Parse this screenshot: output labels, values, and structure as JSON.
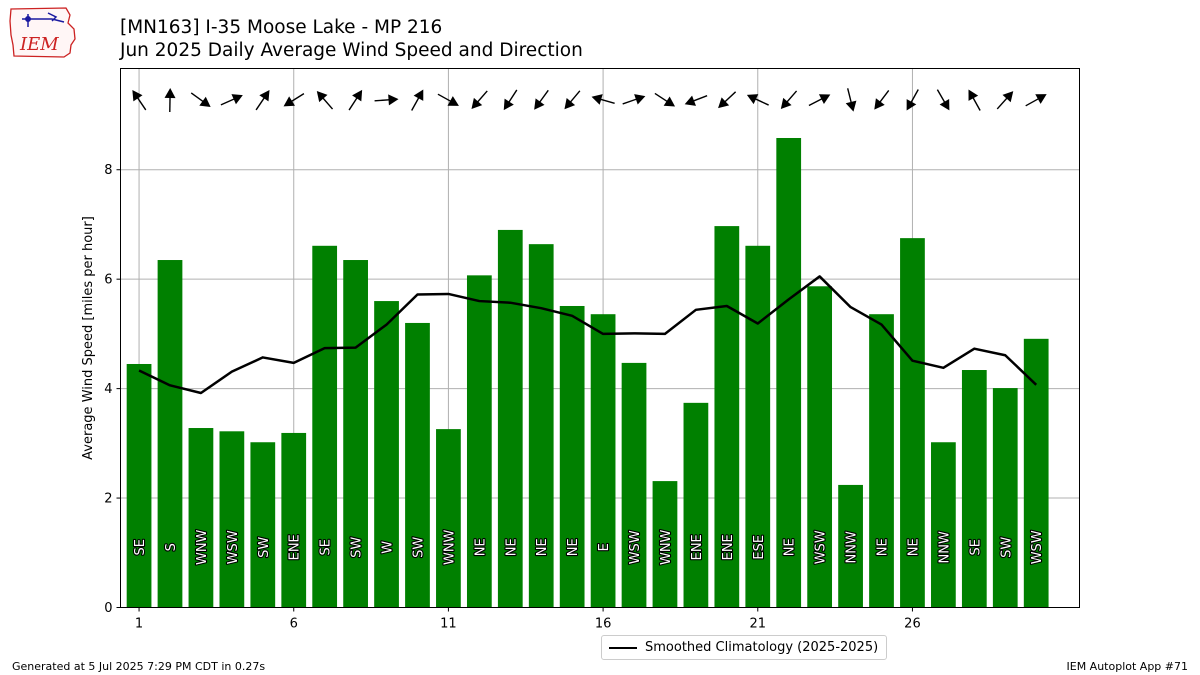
{
  "header": {
    "title_line1": "[MN163] I-35 Moose Lake - MP 216",
    "title_line2": "Jun 2025 Daily Average Wind Speed and Direction"
  },
  "logo": {
    "text": "IEM",
    "icon": "iem-iowa-state-logo"
  },
  "footer": {
    "generated": "Generated at 5 Jul 2025 7:29 PM CDT in 0.27s",
    "app": "IEM Autoplot App #71"
  },
  "chart_data": {
    "type": "bar",
    "title": "[MN163] I-35 Moose Lake - MP 216",
    "subtitle": "Jun 2025 Daily Average Wind Speed and Direction",
    "xlabel": "",
    "ylabel": "Average Wind Speed [miles per hour]",
    "ylim": [
      0,
      9.85
    ],
    "xlim": [
      0.4,
      31.4
    ],
    "xticks": [
      1,
      6,
      11,
      16,
      21,
      26
    ],
    "yticks": [
      0,
      2,
      4,
      6,
      8
    ],
    "grid": true,
    "bar_color": "#008000",
    "legend_position": "below-center",
    "days": [
      1,
      2,
      3,
      4,
      5,
      6,
      7,
      8,
      9,
      10,
      11,
      12,
      13,
      14,
      15,
      16,
      17,
      18,
      19,
      20,
      21,
      22,
      23,
      24,
      25,
      26,
      27,
      28,
      29,
      30
    ],
    "values": [
      4.45,
      6.35,
      3.28,
      3.22,
      3.02,
      3.19,
      6.61,
      6.35,
      5.6,
      5.2,
      3.26,
      6.07,
      6.9,
      6.64,
      5.51,
      5.36,
      4.47,
      2.31,
      3.74,
      6.97,
      6.61,
      8.58,
      5.87,
      2.24,
      5.36,
      6.75,
      3.02,
      4.34,
      4.01,
      4.91
    ],
    "direction_labels": [
      "SE",
      "S",
      "WNW",
      "WSW",
      "SW",
      "ENE",
      "SE",
      "SW",
      "W",
      "SW",
      "WNW",
      "NE",
      "NE",
      "NE",
      "NE",
      "E",
      "WSW",
      "WNW",
      "ENE",
      "ENE",
      "ESE",
      "NE",
      "WSW",
      "NNW",
      "NE",
      "NE",
      "NNW",
      "SE",
      "SW",
      "WSW"
    ],
    "wind_direction_deg": [
      146,
      181,
      306,
      246,
      214,
      58,
      139,
      213,
      266,
      209,
      299,
      41,
      33,
      36,
      40,
      106,
      251,
      303,
      69,
      47,
      115,
      41,
      243,
      346,
      37,
      29,
      330,
      151,
      222,
      241
    ],
    "series": [
      {
        "name": "Smoothed Climatology (2025-2025)",
        "type": "line",
        "color": "#000000",
        "values": [
          4.33,
          4.06,
          3.92,
          4.31,
          4.57,
          4.47,
          4.74,
          4.75,
          5.17,
          5.72,
          5.73,
          5.6,
          5.57,
          5.47,
          5.33,
          5.0,
          5.01,
          5.0,
          5.44,
          5.51,
          5.19,
          5.63,
          6.05,
          5.49,
          5.17,
          4.51,
          4.38,
          4.73,
          4.61,
          4.07
        ]
      }
    ]
  }
}
